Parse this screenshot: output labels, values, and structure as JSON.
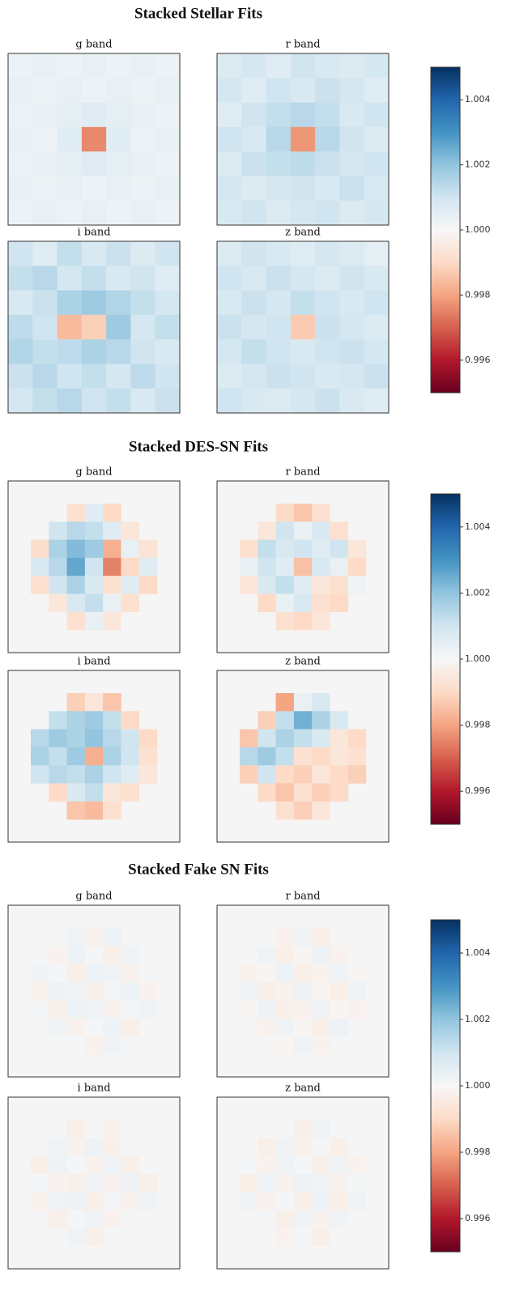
{
  "chart_data": [
    {
      "type": "heatmap",
      "title": "Stacked Stellar Fits",
      "colormap": "RdBu",
      "zlim": [
        0.995,
        1.005
      ],
      "zticks": [
        0.996,
        0.998,
        {
          "value": 1,
          "label": "1.000"
        },
        1.002,
        1.004
      ],
      "panels": [
        {
          "title": "g band",
          "values": [
            [
              1.0003,
              1.0004,
              1.0003,
              1.0004,
              1.0003,
              1.0004,
              1.0003
            ],
            [
              1.0004,
              1.0003,
              1.0004,
              1.0003,
              1.0004,
              1.0003,
              1.0004
            ],
            [
              1.0003,
              1.0004,
              1.0005,
              1.0006,
              1.0005,
              1.0004,
              1.0003
            ],
            [
              1.0004,
              1.0003,
              1.0006,
              0.9976,
              1.0006,
              1.0003,
              1.0004
            ],
            [
              1.0003,
              1.0004,
              1.0005,
              1.0006,
              1.0005,
              1.0004,
              1.0003
            ],
            [
              1.0004,
              1.0003,
              1.0004,
              1.0003,
              1.0004,
              1.0003,
              1.0004
            ],
            [
              1.0003,
              1.0004,
              1.0003,
              1.0004,
              1.0003,
              1.0004,
              1.0003
            ]
          ]
        },
        {
          "title": "r band",
          "values": [
            [
              1.0007,
              1.0009,
              1.0006,
              1.001,
              1.0008,
              1.0007,
              1.0009
            ],
            [
              1.0009,
              1.0006,
              1.001,
              1.0008,
              1.0011,
              1.0009,
              1.0006
            ],
            [
              1.0006,
              1.001,
              1.0012,
              1.0014,
              1.0012,
              1.0008,
              1.001
            ],
            [
              1.001,
              1.0008,
              1.0014,
              0.9978,
              1.0014,
              1.001,
              1.0007
            ],
            [
              1.0007,
              1.0011,
              1.0012,
              1.0013,
              1.0011,
              1.0009,
              1.001
            ],
            [
              1.0009,
              1.0007,
              1.0009,
              1.001,
              1.0008,
              1.0011,
              1.0008
            ],
            [
              1.0008,
              1.001,
              1.0007,
              1.0009,
              1.001,
              1.0007,
              1.0009
            ]
          ]
        },
        {
          "title": "i band",
          "values": [
            [
              1.001,
              1.0006,
              1.0012,
              1.0008,
              1.0011,
              1.0007,
              1.001
            ],
            [
              1.0012,
              1.0014,
              1.0009,
              1.0012,
              1.0008,
              1.001,
              1.0006
            ],
            [
              1.0008,
              1.0011,
              1.0016,
              1.0018,
              1.0015,
              1.0012,
              1.0009
            ],
            [
              1.0013,
              1.001,
              0.9984,
              0.9988,
              1.0018,
              1.0009,
              1.0012
            ],
            [
              1.0015,
              1.0012,
              1.0013,
              1.0016,
              1.0014,
              1.001,
              1.0008
            ],
            [
              1.0011,
              1.0014,
              1.001,
              1.0012,
              1.0009,
              1.0013,
              1.001
            ],
            [
              1.0009,
              1.0012,
              1.0014,
              1.001,
              1.0012,
              1.0008,
              1.0011
            ]
          ]
        },
        {
          "title": "z band",
          "values": [
            [
              1.0007,
              1.001,
              1.0008,
              1.0006,
              1.0009,
              1.0007,
              1.0005
            ],
            [
              1.001,
              1.0008,
              1.0011,
              1.0009,
              1.0007,
              1.001,
              1.0008
            ],
            [
              1.0008,
              1.0011,
              1.0009,
              1.0012,
              1.001,
              1.0008,
              1.001
            ],
            [
              1.0011,
              1.0009,
              1.001,
              0.9987,
              1.0011,
              1.0009,
              1.0007
            ],
            [
              1.0009,
              1.0012,
              1.001,
              1.0008,
              1.001,
              1.0011,
              1.0009
            ],
            [
              1.0007,
              1.0009,
              1.0011,
              1.001,
              1.0008,
              1.0009,
              1.0011
            ],
            [
              1.001,
              1.0008,
              1.0007,
              1.0009,
              1.0011,
              1.0008,
              1.0006
            ]
          ]
        }
      ]
    },
    {
      "type": "heatmap",
      "title": "Stacked DES-SN Fits",
      "colormap": "RdBu",
      "zlim": [
        0.995,
        1.005
      ],
      "zticks": [
        0.996,
        0.998,
        {
          "value": 1,
          "label": "1.000"
        },
        1.002,
        1.004
      ],
      "panels": [
        {
          "title": "g band",
          "values": [
            [
              null,
              null,
              0.9992,
              1.0006,
              0.999,
              null,
              null
            ],
            [
              null,
              1.001,
              1.0014,
              1.0012,
              1.0006,
              0.9994,
              null
            ],
            [
              0.9991,
              1.0016,
              1.0022,
              1.0018,
              0.9982,
              1.0004,
              0.9993
            ],
            [
              1.0008,
              1.0014,
              1.0026,
              1.001,
              0.9975,
              0.999,
              1.0006
            ],
            [
              0.9992,
              1.001,
              1.0016,
              1.0008,
              0.9992,
              1.0006,
              0.999
            ],
            [
              null,
              0.9994,
              1.0008,
              1.0012,
              1.0004,
              0.9992,
              null
            ],
            [
              null,
              null,
              0.9992,
              1.0004,
              0.9994,
              null,
              null
            ]
          ]
        },
        {
          "title": "r band",
          "values": [
            [
              null,
              null,
              0.999,
              0.9986,
              0.9992,
              null,
              null
            ],
            [
              null,
              0.9994,
              1.001,
              1.0004,
              1.0008,
              0.9992,
              null
            ],
            [
              0.9992,
              1.0012,
              1.0008,
              1.001,
              1.0006,
              1.001,
              0.9994
            ],
            [
              1.0004,
              1.001,
              1.0006,
              0.9985,
              1.0008,
              1.0004,
              0.999
            ],
            [
              0.9994,
              1.0008,
              1.0012,
              1.0006,
              0.9994,
              0.9992,
              1.0002
            ],
            [
              null,
              0.999,
              1.0004,
              1.0008,
              0.9992,
              0.999,
              null
            ],
            [
              null,
              null,
              0.9992,
              0.999,
              0.9994,
              null,
              null
            ]
          ]
        },
        {
          "title": "i band",
          "values": [
            [
              null,
              null,
              0.9988,
              0.9994,
              0.9986,
              null,
              null
            ],
            [
              null,
              1.0012,
              1.0016,
              1.0018,
              1.0012,
              0.999,
              null
            ],
            [
              1.0014,
              1.0018,
              1.0016,
              1.002,
              1.0014,
              1.001,
              0.999
            ],
            [
              1.0016,
              1.0012,
              1.0018,
              0.9982,
              1.0016,
              1.001,
              0.9992
            ],
            [
              1.001,
              1.0014,
              1.0012,
              1.0016,
              1.001,
              1.0006,
              0.9994
            ],
            [
              null,
              0.999,
              1.0008,
              1.0012,
              0.9994,
              0.9992,
              null
            ],
            [
              null,
              null,
              0.9986,
              0.9984,
              0.9992,
              null,
              null
            ]
          ]
        },
        {
          "title": "z band",
          "values": [
            [
              null,
              null,
              0.998,
              1.0004,
              1.0008,
              null,
              null
            ],
            [
              null,
              0.9988,
              1.0012,
              1.0024,
              1.0016,
              1.0008,
              null
            ],
            [
              0.9986,
              1.001,
              1.0016,
              1.0012,
              1.0008,
              0.9994,
              0.999
            ],
            [
              1.0014,
              1.0018,
              1.0012,
              0.9992,
              0.999,
              0.9994,
              0.9992
            ],
            [
              0.9988,
              1.001,
              0.999,
              0.9988,
              0.9994,
              0.999,
              0.9988
            ],
            [
              null,
              0.999,
              0.9986,
              0.9992,
              0.9988,
              0.999,
              null
            ],
            [
              null,
              null,
              0.9992,
              0.9988,
              0.9994,
              null,
              null
            ]
          ]
        }
      ]
    },
    {
      "type": "heatmap",
      "title": "Stacked Fake SN Fits",
      "colormap": "RdBu",
      "zlim": [
        0.995,
        1.005
      ],
      "zticks": [
        0.996,
        0.998,
        {
          "value": 1,
          "label": "1.000"
        },
        1.002,
        1.004
      ],
      "panels": [
        {
          "title": "g band",
          "values": [
            [
              null,
              null,
              1.0002,
              0.9998,
              1.0003,
              null,
              null
            ],
            [
              null,
              0.9998,
              1.0003,
              1.0001,
              0.9997,
              1.0002,
              null
            ],
            [
              1.0002,
              1.0001,
              0.9997,
              1.0003,
              1.0002,
              0.9998,
              1.0001
            ],
            [
              0.9998,
              1.0003,
              1.0002,
              0.9997,
              1.0001,
              1.0003,
              0.9998
            ],
            [
              1.0001,
              0.9997,
              1.0003,
              1.0002,
              0.9998,
              1.0001,
              1.0002
            ],
            [
              null,
              1.0002,
              0.9998,
              1.0001,
              1.0003,
              0.9997,
              null
            ],
            [
              null,
              null,
              1.0001,
              0.9998,
              1.0002,
              null,
              null
            ]
          ]
        },
        {
          "title": "r band",
          "values": [
            [
              null,
              null,
              0.9998,
              1.0002,
              0.9997,
              null,
              null
            ],
            [
              null,
              1.0002,
              0.9997,
              0.9999,
              1.0003,
              0.9998,
              null
            ],
            [
              0.9998,
              0.9999,
              1.0003,
              0.9997,
              0.9998,
              1.0002,
              0.9999
            ],
            [
              1.0002,
              0.9997,
              0.9998,
              1.0003,
              0.9999,
              0.9997,
              1.0002
            ],
            [
              0.9999,
              1.0003,
              0.9997,
              0.9998,
              1.0002,
              0.9999,
              0.9998
            ],
            [
              null,
              0.9998,
              1.0002,
              0.9999,
              0.9997,
              1.0003,
              null
            ],
            [
              null,
              null,
              0.9999,
              1.0002,
              0.9998,
              null,
              null
            ]
          ]
        },
        {
          "title": "i band",
          "values": [
            [
              null,
              null,
              0.9997,
              1.0001,
              0.9998,
              null,
              null
            ],
            [
              null,
              1.0002,
              0.9998,
              1.0003,
              0.9997,
              1.0001,
              null
            ],
            [
              0.9997,
              1.0003,
              1.0001,
              0.9998,
              1.0002,
              0.9997,
              1.0001
            ],
            [
              1.0001,
              0.9998,
              0.9997,
              1.0002,
              0.9998,
              1.0003,
              0.9997
            ],
            [
              0.9998,
              1.0002,
              1.0003,
              0.9997,
              1.0001,
              0.9998,
              1.0002
            ],
            [
              null,
              0.9997,
              1.0001,
              1.0002,
              0.9998,
              1.0001,
              null
            ],
            [
              null,
              null,
              1.0002,
              0.9997,
              1.0001,
              null,
              null
            ]
          ]
        },
        {
          "title": "z band",
          "values": [
            [
              null,
              null,
              1.0001,
              0.9997,
              1.0002,
              null,
              null
            ],
            [
              null,
              0.9997,
              1.0002,
              0.9998,
              1.0001,
              0.9997,
              null
            ],
            [
              1.0001,
              0.9998,
              1.0002,
              1.0001,
              0.9997,
              1.0002,
              0.9998
            ],
            [
              0.9997,
              1.0002,
              0.9998,
              1.0003,
              1.0002,
              0.9998,
              1.0001
            ],
            [
              1.0002,
              0.9998,
              1.0001,
              0.9997,
              1.0003,
              0.9997,
              1.0002
            ],
            [
              null,
              1.0001,
              0.9997,
              1.0002,
              0.9998,
              1.0002,
              null
            ],
            [
              null,
              null,
              0.9998,
              1.0001,
              0.9997,
              null,
              null
            ]
          ]
        }
      ]
    }
  ]
}
